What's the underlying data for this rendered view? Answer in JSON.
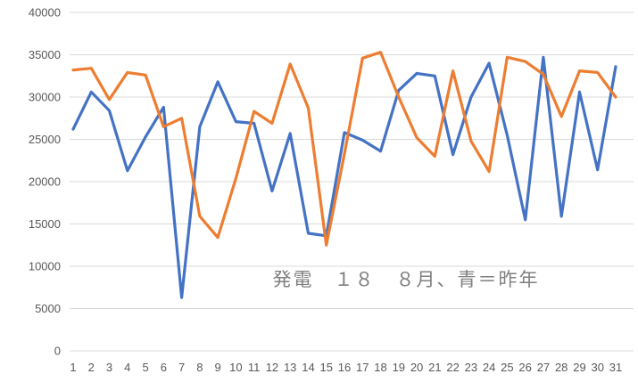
{
  "chart_data": {
    "type": "line",
    "title": "発電　１８　８月、青＝昨年",
    "x_labels": [
      "1",
      "2",
      "3",
      "4",
      "5",
      "6",
      "7",
      "8",
      "9",
      "10",
      "11",
      "12",
      "13",
      "14",
      "15",
      "16",
      "17",
      "18",
      "19",
      "20",
      "21",
      "22",
      "23",
      "24",
      "25",
      "26",
      "27",
      "28",
      "29",
      "30",
      "31"
    ],
    "xlabel": "",
    "ylabel": "",
    "ylim": [
      0,
      40000
    ],
    "ytick_step": 5000,
    "grid": "horizontal",
    "legend": "none",
    "background": "#ffffff",
    "gridline_color": "#d9d9d9",
    "axis_label_color": "#595959",
    "title_color": "#7f7f7f",
    "series": [
      {
        "key": "blue",
        "color": "#4472C4",
        "values": [
          26200,
          30600,
          28400,
          21300,
          25300,
          28800,
          6300,
          26500,
          31800,
          27100,
          26900,
          18900,
          25700,
          13900,
          13600,
          25800,
          24900,
          23600,
          30800,
          32800,
          32500,
          23200,
          30000,
          34000,
          25500,
          15500,
          34700,
          15900,
          30600,
          21400,
          33600
        ]
      },
      {
        "key": "orange",
        "color": "#ED7D31",
        "values": [
          33200,
          33400,
          29700,
          32900,
          32600,
          26500,
          27500,
          15900,
          13400,
          20400,
          28300,
          26900,
          33900,
          28700,
          12500,
          23300,
          34600,
          35300,
          30000,
          25200,
          23000,
          33100,
          24800,
          21200,
          34700,
          34200,
          32700,
          27700,
          33100,
          32900,
          30000
        ]
      }
    ]
  }
}
